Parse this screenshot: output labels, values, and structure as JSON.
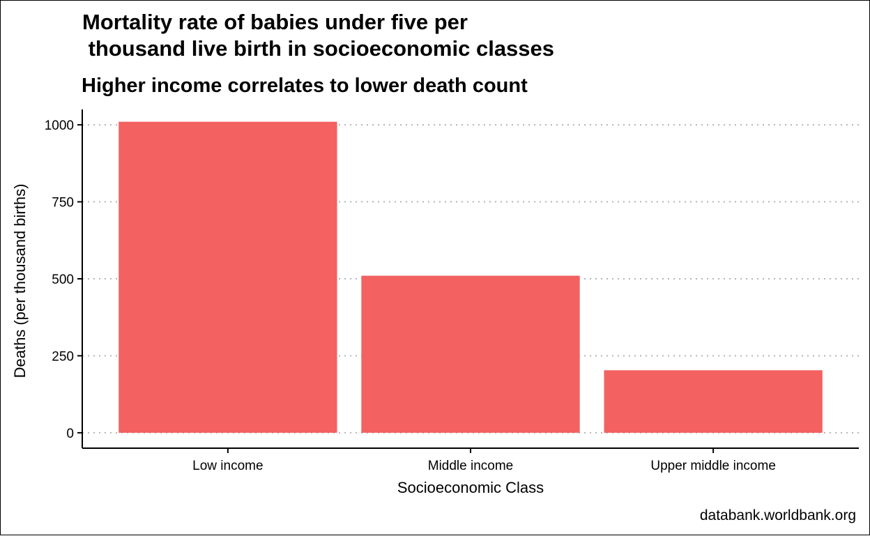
{
  "chart_data": {
    "type": "bar",
    "title": "Mortality rate of babies under five per\n thousand live birth in socioeconomic classes",
    "subtitle": "Higher income correlates to lower death count",
    "xlabel": "Socioeconomic Class",
    "ylabel": "Deaths (per thousand births)",
    "caption": "databank.worldbank.org",
    "categories": [
      "Low income",
      "Middle income",
      "Upper middle income"
    ],
    "values": [
      1010,
      510,
      203
    ],
    "ylim": [
      -50,
      1050
    ],
    "yticks": [
      0,
      250,
      500,
      750,
      1000
    ],
    "grid": "horizontal dotted",
    "bar_color": "#F36161",
    "grid_color": "#B3B3B3"
  }
}
